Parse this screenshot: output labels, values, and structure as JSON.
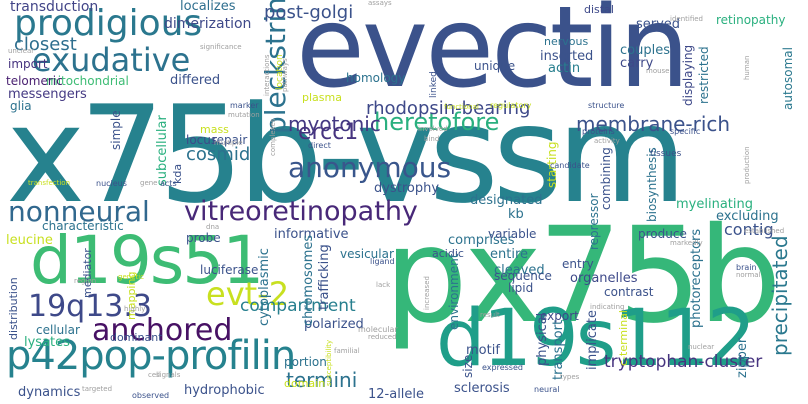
{
  "words": [
    {
      "text": "x75b-vssm",
      "color": "#26828e"
    },
    {
      "text": "evectin",
      "color": "#3b528b"
    },
    {
      "text": "px75b",
      "color": "#35b779"
    },
    {
      "text": "d19s112",
      "color": "#1f9e89"
    },
    {
      "text": "d19s51",
      "color": "#3dbc74"
    },
    {
      "text": "p42pop-profilin",
      "color": "#26828e"
    },
    {
      "text": "prodigious",
      "color": "#2a788e"
    },
    {
      "text": "exudative",
      "color": "#2c728e"
    },
    {
      "text": "vitreoretinopathy",
      "color": "#482878"
    },
    {
      "text": "nonneural",
      "color": "#31688e"
    },
    {
      "text": "19q13.3",
      "color": "#3e4989"
    },
    {
      "text": "evt-2",
      "color": "#c8e020"
    },
    {
      "text": "anchored",
      "color": "#471164"
    },
    {
      "text": "pleckstrin",
      "color": "#2c728e"
    },
    {
      "text": "heretofore",
      "color": "#2ab07f"
    },
    {
      "text": "myotonic",
      "color": "#443983"
    },
    {
      "text": "rhodopsin-bearing",
      "color": "#3e4989"
    },
    {
      "text": "membrane-rich",
      "color": "#3b528b"
    },
    {
      "text": "ercc1",
      "color": "#46337f"
    },
    {
      "text": "anonymous",
      "color": "#39568c"
    },
    {
      "text": "cosmid",
      "color": "#2c728e"
    },
    {
      "text": "closest",
      "color": "#2e6e8e"
    },
    {
      "text": "compartment",
      "color": "#277f8e"
    },
    {
      "text": "precipitated",
      "color": "#2a788e"
    },
    {
      "text": "termini",
      "color": "#2c728e"
    },
    {
      "text": "tryptophan-cluster",
      "color": "#46337f"
    },
    {
      "text": "post-golgi",
      "color": "#3b528b"
    },
    {
      "text": "transduction",
      "color": "#414487"
    },
    {
      "text": "dimerization",
      "color": "#3e4989"
    },
    {
      "text": "mitochondrial",
      "color": "#3dbc74"
    },
    {
      "text": "differed",
      "color": "#3b528b"
    },
    {
      "text": "messengers",
      "color": "#443983"
    },
    {
      "text": "telomeric",
      "color": "#481f70"
    },
    {
      "text": "import",
      "color": "#46337f"
    },
    {
      "text": "glia",
      "color": "#2c728e"
    },
    {
      "text": "localizes",
      "color": "#2e6e8e"
    },
    {
      "text": "served",
      "color": "#3b528b"
    },
    {
      "text": "couples",
      "color": "#2c728e"
    },
    {
      "text": "carry",
      "color": "#3e4989"
    },
    {
      "text": "inserted",
      "color": "#3b528b"
    },
    {
      "text": "actin",
      "color": "#277f8e"
    },
    {
      "text": "nervous",
      "color": "#2c728e"
    },
    {
      "text": "unique",
      "color": "#3b528b"
    },
    {
      "text": "homology",
      "color": "#2c728e"
    },
    {
      "text": "retinopathy",
      "color": "#2ab07f"
    },
    {
      "text": "displaying",
      "color": "#3e4989"
    },
    {
      "text": "restricted",
      "color": "#2c728e"
    },
    {
      "text": "autosomal",
      "color": "#2a788e"
    },
    {
      "text": "combining",
      "color": "#3b528b"
    },
    {
      "text": "biosynthesis",
      "color": "#2c728e"
    },
    {
      "text": "starting",
      "color": "#c8e020"
    },
    {
      "text": "myelinating",
      "color": "#2ab07f"
    },
    {
      "text": "excluding",
      "color": "#2c728e"
    },
    {
      "text": "contig",
      "color": "#3b528b"
    },
    {
      "text": "dystrophy",
      "color": "#3b528b"
    },
    {
      "text": "designated",
      "color": "#2c728e"
    },
    {
      "text": "kb",
      "color": "#2c728e"
    },
    {
      "text": "repair",
      "color": "#3b528b"
    },
    {
      "text": "locus",
      "color": "#3e4989"
    },
    {
      "text": "subcellular",
      "color": "#2ab07f"
    },
    {
      "text": "kda",
      "color": "#3b528b"
    },
    {
      "text": "simple",
      "color": "#3b528b"
    },
    {
      "text": "plasma",
      "color": "#c8e020"
    },
    {
      "text": "mass",
      "color": "#c8e020"
    },
    {
      "text": "informative",
      "color": "#3b528b"
    },
    {
      "text": "probe",
      "color": "#3b528b"
    },
    {
      "text": "vesicular",
      "color": "#2c728e"
    },
    {
      "text": "acidic",
      "color": "#3b528b"
    },
    {
      "text": "comprises",
      "color": "#2c728e"
    },
    {
      "text": "variable",
      "color": "#3b528b"
    },
    {
      "text": "produce",
      "color": "#3b528b"
    },
    {
      "text": "entire",
      "color": "#2c728e"
    },
    {
      "text": "cleaved",
      "color": "#2c728e"
    },
    {
      "text": "entry",
      "color": "#3b528b"
    },
    {
      "text": "organelles",
      "color": "#3e4989"
    },
    {
      "text": "contrast",
      "color": "#3b528b"
    },
    {
      "text": "sequence",
      "color": "#3b528b"
    },
    {
      "text": "lipid",
      "color": "#3b528b"
    },
    {
      "text": "export",
      "color": "#3e4989"
    },
    {
      "text": "polarized",
      "color": "#3b528b"
    },
    {
      "text": "portion",
      "color": "#2c728e"
    },
    {
      "text": "domain",
      "color": "#c8e020"
    },
    {
      "text": "sclerosis",
      "color": "#3b528b"
    },
    {
      "text": "12-allele",
      "color": "#3b528b"
    },
    {
      "text": "hydrophobic",
      "color": "#3b528b"
    },
    {
      "text": "dynamics",
      "color": "#3b528b"
    },
    {
      "text": "lysates",
      "color": "#2ab07f"
    },
    {
      "text": "dominant",
      "color": "#3b528b"
    },
    {
      "text": "cellular",
      "color": "#2c728e"
    },
    {
      "text": "distribution",
      "color": "#3b528b"
    },
    {
      "text": "luciferase",
      "color": "#3b528b"
    },
    {
      "text": "cytoplasmic",
      "color": "#2c728e"
    },
    {
      "text": "chromosomes",
      "color": "#2c728e"
    },
    {
      "text": "trafficking",
      "color": "#3b528b"
    },
    {
      "text": "leucine",
      "color": "#c8e020"
    },
    {
      "text": "characteristic",
      "color": "#2c728e"
    },
    {
      "text": "repressor",
      "color": "#2c728e"
    },
    {
      "text": "environment",
      "color": "#2c728e"
    },
    {
      "text": "motif",
      "color": "#3b528b"
    },
    {
      "text": "size",
      "color": "#3b528b"
    },
    {
      "text": "physical",
      "color": "#3b528b"
    },
    {
      "text": "transport",
      "color": "#2c728e"
    },
    {
      "text": "implicate",
      "color": "#3b528b"
    },
    {
      "text": "photoreceptors",
      "color": "#2c728e"
    },
    {
      "text": "zipper",
      "color": "#2c728e"
    },
    {
      "text": "c-terminal",
      "color": "#c8e020"
    },
    {
      "text": "mapping",
      "color": "#c8e020"
    },
    {
      "text": "mediator",
      "color": "#3b528b"
    },
    {
      "text": "distal",
      "color": "#3e4989"
    },
    {
      "text": "linked",
      "color": "#3b528b"
    },
    {
      "text": "assays",
      "color": "#9f9f9f"
    },
    {
      "text": "significance",
      "color": "#9f9f9f"
    },
    {
      "text": "unclear",
      "color": "#9f9f9f"
    },
    {
      "text": "pathways",
      "color": "#9f9f9f"
    },
    {
      "text": "interactions",
      "color": "#9f9f9f"
    },
    {
      "text": "location",
      "color": "#c8e020"
    },
    {
      "text": "identified",
      "color": "#9f9f9f"
    },
    {
      "text": "mouse",
      "color": "#9f9f9f"
    },
    {
      "text": "human",
      "color": "#9f9f9f"
    },
    {
      "text": "functional",
      "color": "#c8e020"
    },
    {
      "text": "regulatory",
      "color": "#c8e020"
    },
    {
      "text": "structure",
      "color": "#3b528b"
    },
    {
      "text": "marker",
      "color": "#3b528b"
    },
    {
      "text": "mutation",
      "color": "#9f9f9f"
    },
    {
      "text": "multiple",
      "color": "#9f9f9f"
    },
    {
      "text": "complexes",
      "color": "#9f9f9f"
    },
    {
      "text": "involved",
      "color": "#9f9f9f"
    },
    {
      "text": "bind",
      "color": "#9f9f9f"
    },
    {
      "text": "direct",
      "color": "#3b528b"
    },
    {
      "text": "proteins",
      "color": "#3b528b"
    },
    {
      "text": "activity",
      "color": "#9f9f9f"
    },
    {
      "text": "specific",
      "color": "#3b528b"
    },
    {
      "text": "tissues",
      "color": "#3b528b"
    },
    {
      "text": "candidate",
      "color": "#3b528b"
    },
    {
      "text": "production",
      "color": "#9f9f9f"
    },
    {
      "text": "transfection",
      "color": "#c8e020"
    },
    {
      "text": "nucleus",
      "color": "#3b528b"
    },
    {
      "text": "gene",
      "color": "#9f9f9f"
    },
    {
      "text": "acts",
      "color": "#3b528b"
    },
    {
      "text": "dna",
      "color": "#9f9f9f"
    },
    {
      "text": "region",
      "color": "#9f9f9f"
    },
    {
      "text": "genetic",
      "color": "#c8e020"
    },
    {
      "text": "highly",
      "color": "#9f9f9f"
    },
    {
      "text": "ligand",
      "color": "#3b528b"
    },
    {
      "text": "lack",
      "color": "#9f9f9f"
    },
    {
      "text": "increased",
      "color": "#9f9f9f"
    },
    {
      "text": "indicating",
      "color": "#9f9f9f"
    },
    {
      "text": "result",
      "color": "#9f9f9f"
    },
    {
      "text": "markedly",
      "color": "#9f9f9f"
    },
    {
      "text": "established",
      "color": "#9f9f9f"
    },
    {
      "text": "brain",
      "color": "#3b528b"
    },
    {
      "text": "normal",
      "color": "#9f9f9f"
    },
    {
      "text": "nuclear",
      "color": "#9f9f9f"
    },
    {
      "text": "expressed",
      "color": "#3b528b"
    },
    {
      "text": "types",
      "color": "#9f9f9f"
    },
    {
      "text": "molecular",
      "color": "#9f9f9f"
    },
    {
      "text": "reduced",
      "color": "#9f9f9f"
    },
    {
      "text": "familial",
      "color": "#9f9f9f"
    },
    {
      "text": "susceptibility",
      "color": "#c8e020"
    },
    {
      "text": "neural",
      "color": "#3b528b"
    },
    {
      "text": "observed",
      "color": "#3b528b"
    },
    {
      "text": "targeted",
      "color": "#9f9f9f"
    },
    {
      "text": "signals",
      "color": "#9f9f9f"
    },
    {
      "text": "cell",
      "color": "#9f9f9f"
    }
  ]
}
